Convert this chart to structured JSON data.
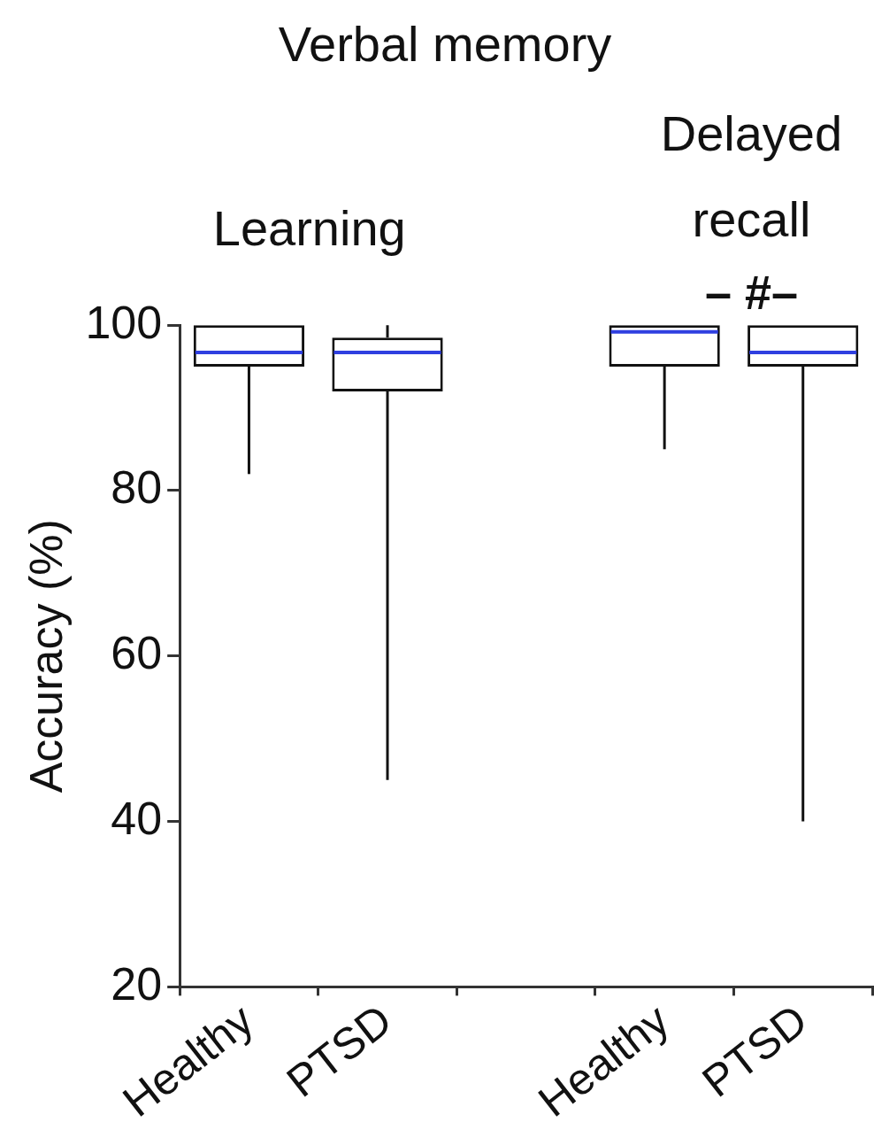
{
  "chart_data": {
    "type": "box",
    "title": "Verbal memory",
    "ylabel": "Accuracy (%)",
    "categories": [
      "Healthy",
      "PTSD",
      null,
      "Healthy",
      "PTSD"
    ],
    "series": [
      {
        "color": "#111111",
        "boxes": [
          {
            "low": 82,
            "q1": 95,
            "median": 96.7,
            "q3": 100,
            "high": 100
          },
          {
            "low": 45,
            "q1": 92,
            "median": 96.7,
            "q3": 98.5,
            "high": 100
          },
          null,
          {
            "low": 85,
            "q1": 95,
            "median": 99.2,
            "q3": 100,
            "high": 100
          },
          {
            "low": 40,
            "q1": 95,
            "median": 96.7,
            "q3": 100,
            "high": 100
          }
        ]
      }
    ],
    "ylim": [
      20,
      100
    ],
    "yticks": [
      20,
      40,
      60,
      80,
      100
    ],
    "grid": false,
    "legend": false,
    "annotations": [
      "Learning",
      "Delayed recall",
      "– #–"
    ]
  }
}
